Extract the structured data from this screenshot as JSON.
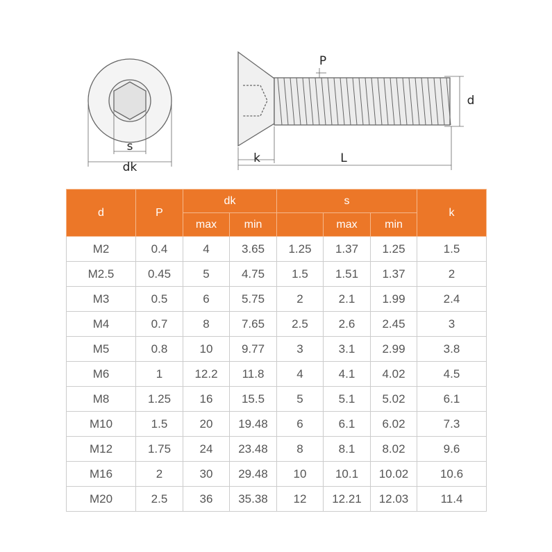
{
  "diagram": {
    "front_labels": {
      "s": "s",
      "dk": "dk"
    },
    "side_labels": {
      "P": "P",
      "d": "d",
      "k": "k",
      "L": "L"
    }
  },
  "table": {
    "header": {
      "d": "d",
      "P": "P",
      "dk": "dk",
      "dk_max": "max",
      "dk_min": "min",
      "s": "s",
      "s_max": "max",
      "s_min": "min",
      "k": "k"
    },
    "rows": [
      [
        "M2",
        "0.4",
        "4",
        "3.65",
        "1.25",
        "1.37",
        "1.25",
        "1.5"
      ],
      [
        "M2.5",
        "0.45",
        "5",
        "4.75",
        "1.5",
        "1.51",
        "1.37",
        "2"
      ],
      [
        "M3",
        "0.5",
        "6",
        "5.75",
        "2",
        "2.1",
        "1.99",
        "2.4"
      ],
      [
        "M4",
        "0.7",
        "8",
        "7.65",
        "2.5",
        "2.6",
        "2.45",
        "3"
      ],
      [
        "M5",
        "0.8",
        "10",
        "9.77",
        "3",
        "3.1",
        "2.99",
        "3.8"
      ],
      [
        "M6",
        "1",
        "12.2",
        "11.8",
        "4",
        "4.1",
        "4.02",
        "4.5"
      ],
      [
        "M8",
        "1.25",
        "16",
        "15.5",
        "5",
        "5.1",
        "5.02",
        "6.1"
      ],
      [
        "M10",
        "1.5",
        "20",
        "19.48",
        "6",
        "6.1",
        "6.02",
        "7.3"
      ],
      [
        "M12",
        "1.75",
        "24",
        "23.48",
        "8",
        "8.1",
        "8.02",
        "9.6"
      ],
      [
        "M16",
        "2",
        "30",
        "29.48",
        "10",
        "10.1",
        "10.02",
        "10.6"
      ],
      [
        "M20",
        "2.5",
        "36",
        "35.38",
        "12",
        "12.21",
        "12.03",
        "11.4"
      ]
    ]
  }
}
